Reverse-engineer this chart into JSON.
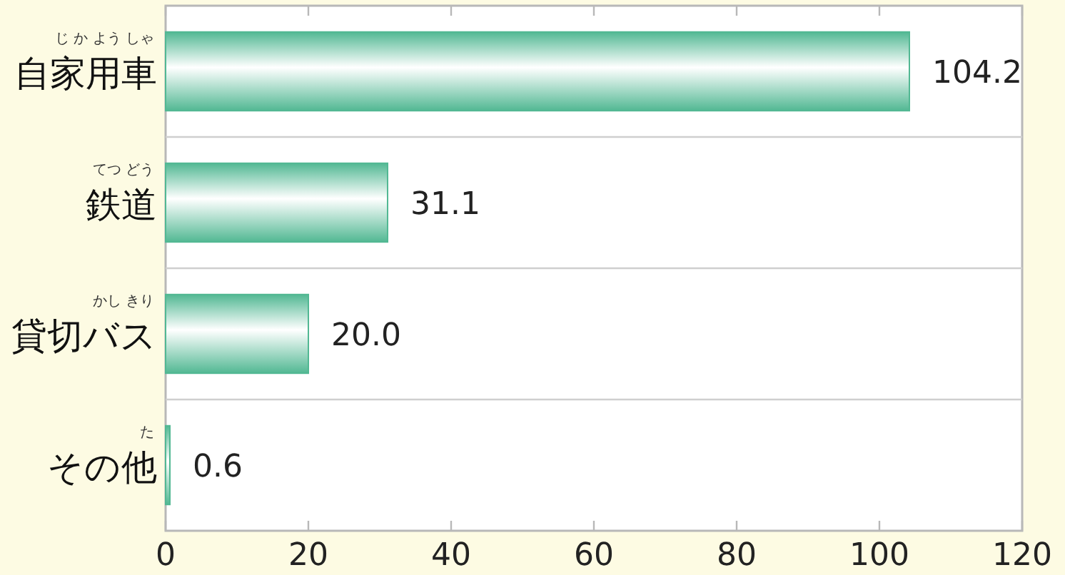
{
  "chart_data": {
    "type": "bar",
    "orientation": "horizontal",
    "categories": [
      "自家用車",
      "鉄道",
      "貸切バス",
      "その他"
    ],
    "values": [
      104.2,
      31.1,
      20.0,
      0.6
    ],
    "value_labels": [
      "104.2",
      "31.1",
      "20.0",
      "0.6"
    ],
    "color": "#52b893",
    "xlim": [
      0,
      120
    ],
    "xticks": [
      0,
      20,
      40,
      60,
      80,
      100,
      120
    ],
    "grid": "y",
    "annotations": [
      "じ か よう しゃ",
      "てつ どう",
      "かし きり",
      "た"
    ]
  }
}
